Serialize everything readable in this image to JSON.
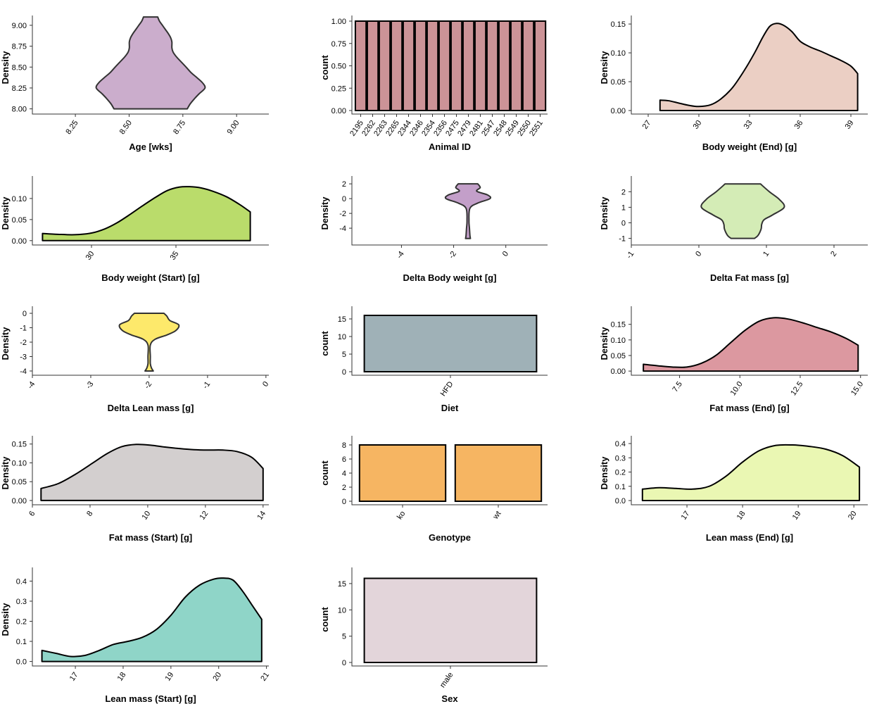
{
  "chart_data": [
    {
      "type": "violin",
      "xlabel": "Age [wks]",
      "ylabel": "Density",
      "color": "#cbadcc",
      "xlim": [
        8.05,
        9.15
      ],
      "ylim": [
        7.98,
        9.05
      ],
      "xticks": [
        8.25,
        8.5,
        8.75,
        9.0
      ],
      "xtick_labels": [
        "8.25",
        "8.50",
        "8.75",
        "9.00"
      ],
      "yticks": [
        8.0,
        8.25,
        8.5,
        8.75,
        9.0
      ],
      "ytick_labels": [
        "8.00",
        "8.25",
        "8.50",
        "8.75",
        "9.00"
      ],
      "center": 8.6,
      "profile": [
        [
          8.0,
          0.62
        ],
        [
          8.06,
          0.67
        ],
        [
          8.12,
          0.74
        ],
        [
          8.18,
          0.82
        ],
        [
          8.25,
          0.92
        ],
        [
          8.31,
          0.88
        ],
        [
          8.37,
          0.79
        ],
        [
          8.43,
          0.69
        ],
        [
          8.5,
          0.6
        ],
        [
          8.56,
          0.52
        ],
        [
          8.62,
          0.44
        ],
        [
          8.68,
          0.38
        ],
        [
          8.73,
          0.36
        ],
        [
          8.8,
          0.36
        ],
        [
          8.85,
          0.34
        ],
        [
          8.9,
          0.3
        ],
        [
          8.95,
          0.25
        ],
        [
          9.0,
          0.2
        ],
        [
          9.05,
          0.15
        ],
        [
          9.1,
          0.12
        ]
      ]
    },
    {
      "type": "bar",
      "xlabel": "Animal ID",
      "ylabel": "count",
      "color": "#cc9397",
      "categories": [
        "2195",
        "2262",
        "2263",
        "2265",
        "2344",
        "2346",
        "2354",
        "2356",
        "2475",
        "2479",
        "2481",
        "2547",
        "2548",
        "2549",
        "2550",
        "2551"
      ],
      "values": [
        1,
        1,
        1,
        1,
        1,
        1,
        1,
        1,
        1,
        1,
        1,
        1,
        1,
        1,
        1,
        1
      ],
      "ylim": [
        0,
        1
      ],
      "yticks": [
        0,
        0.25,
        0.5,
        0.75,
        1.0
      ],
      "ytick_labels": [
        "0.00",
        "0.25",
        "0.50",
        "0.75",
        "1.00"
      ]
    },
    {
      "type": "area",
      "xlabel": "Body weight (End) [g]",
      "ylabel": "Density",
      "color": "#ebcfc4",
      "xlim": [
        26,
        40
      ],
      "ylim": [
        0,
        0.155
      ],
      "xticks": [
        27,
        30,
        33,
        36,
        39
      ],
      "xtick_labels": [
        "27",
        "30",
        "33",
        "36",
        "39"
      ],
      "yticks": [
        0,
        0.05,
        0.1,
        0.15
      ],
      "ytick_labels": [
        "0.00",
        "0.05",
        "0.10",
        "0.15"
      ],
      "x": [
        27.7,
        28.2,
        28.8,
        29.4,
        30,
        30.7,
        31.3,
        32,
        32.7,
        33.3,
        33.8,
        34.2,
        34.6,
        35,
        35.5,
        36,
        36.6,
        37.2,
        37.8,
        38.4,
        39,
        39.4
      ],
      "y": [
        0.018,
        0.017,
        0.013,
        0.009,
        0.007,
        0.01,
        0.02,
        0.04,
        0.07,
        0.1,
        0.128,
        0.146,
        0.151,
        0.148,
        0.137,
        0.12,
        0.11,
        0.103,
        0.095,
        0.087,
        0.077,
        0.064
      ]
    },
    {
      "type": "area",
      "xlabel": "Body weight (Start) [g]",
      "ylabel": "Density",
      "color": "#badc6b",
      "xlim": [
        26.5,
        40.5
      ],
      "ylim": [
        -0.002,
        0.14
      ],
      "xticks": [
        30,
        35
      ],
      "xtick_labels": [
        "30",
        "35"
      ],
      "yticks": [
        0,
        0.05,
        0.1
      ],
      "ytick_labels": [
        "0.00",
        "0.05",
        "0.10"
      ],
      "x": [
        27.1,
        28,
        29,
        30,
        30.8,
        31.5,
        32.2,
        33,
        33.8,
        34.5,
        35.2,
        35.8,
        36.5,
        37.2,
        38,
        38.8,
        39.4
      ],
      "y": [
        0.017,
        0.015,
        0.014,
        0.018,
        0.028,
        0.042,
        0.06,
        0.082,
        0.103,
        0.119,
        0.127,
        0.128,
        0.125,
        0.117,
        0.104,
        0.085,
        0.068
      ]
    },
    {
      "type": "violin",
      "xlabel": "Delta Body weight [g]",
      "ylabel": "Density",
      "color": "#c39fc9",
      "xlim": [
        -5.9,
        1.6
      ],
      "ylim": [
        -5.8,
        2.3
      ],
      "xticks": [
        -4,
        -2,
        0
      ],
      "xtick_labels": [
        "-4",
        "-2",
        "0"
      ],
      "yticks": [
        -4,
        -2,
        0,
        2
      ],
      "ytick_labels": [
        "-4",
        "-2",
        "0",
        "2"
      ],
      "center": -1.45,
      "profile": [
        [
          -5.4,
          0.05
        ],
        [
          -5,
          0.04
        ],
        [
          -4,
          0.03
        ],
        [
          -3,
          0.02
        ],
        [
          -1.3,
          0.04
        ],
        [
          -0.6,
          0.2
        ],
        [
          0,
          0.45
        ],
        [
          0.5,
          0.4
        ],
        [
          1.0,
          0.18
        ],
        [
          1.5,
          0.25
        ],
        [
          2.0,
          0.2
        ]
      ]
    },
    {
      "type": "violin",
      "xlabel": "Delta Fat mass [g]",
      "ylabel": "Density",
      "color": "#d4ecb6",
      "xlim": [
        -1,
        2.5
      ],
      "ylim": [
        -1.2,
        2.65
      ],
      "xticks": [
        -1,
        0,
        1,
        2
      ],
      "xtick_labels": [
        "-1",
        "0",
        "1",
        "2"
      ],
      "yticks": [
        -1,
        0,
        1,
        2
      ],
      "ytick_labels": [
        "-1",
        "0",
        "1",
        "2"
      ],
      "center": 0.65,
      "profile": [
        [
          -1.0,
          0.2
        ],
        [
          -0.8,
          0.26
        ],
        [
          -0.4,
          0.31
        ],
        [
          -0.1,
          0.32
        ],
        [
          0.2,
          0.36
        ],
        [
          0.5,
          0.5
        ],
        [
          1.0,
          0.7
        ],
        [
          1.5,
          0.62
        ],
        [
          2.0,
          0.45
        ],
        [
          2.5,
          0.3
        ]
      ]
    },
    {
      "type": "violin",
      "xlabel": "Delta Lean mass [g]",
      "ylabel": "Density",
      "color": "#fde96b",
      "xlim": [
        -4,
        0.05
      ],
      "ylim": [
        -4.05,
        0.1
      ],
      "xticks": [
        -4,
        -3,
        -2,
        -1,
        0
      ],
      "xtick_labels": [
        "-4",
        "-3",
        "-2",
        "-1",
        "0"
      ],
      "yticks": [
        -4,
        -3,
        -2,
        -1,
        0
      ],
      "ytick_labels": [
        "-4",
        "-3",
        "-2",
        "-1",
        "0"
      ],
      "center": -2.0,
      "profile": [
        [
          -4.0,
          0.07
        ],
        [
          -3.8,
          0.04
        ],
        [
          -3.5,
          0.02
        ],
        [
          -3,
          0.02
        ],
        [
          -2.2,
          0.02
        ],
        [
          -1.8,
          0.1
        ],
        [
          -1.5,
          0.3
        ],
        [
          -1.2,
          0.45
        ],
        [
          -0.8,
          0.5
        ],
        [
          -0.5,
          0.35
        ],
        [
          -0.2,
          0.3
        ],
        [
          0,
          0.25
        ]
      ]
    },
    {
      "type": "bar",
      "xlabel": "Diet",
      "ylabel": "count",
      "color": "#9fb1b7",
      "categories": [
        "HFD"
      ],
      "values": [
        16
      ],
      "ylim": [
        0,
        17
      ],
      "yticks": [
        0,
        5,
        10,
        15
      ],
      "ytick_labels": [
        "0",
        "5",
        "10",
        "15"
      ]
    },
    {
      "type": "area",
      "xlabel": "Fat mass (End) [g]",
      "ylabel": "Density",
      "color": "#dc98a0",
      "xlim": [
        5.5,
        15.3
      ],
      "ylim": [
        -0.002,
        0.19
      ],
      "xticks": [
        7.5,
        10,
        12.5,
        15
      ],
      "xtick_labels": [
        "7.5",
        "10.0",
        "12.5",
        "15.0"
      ],
      "yticks": [
        0,
        0.05,
        0.1,
        0.15
      ],
      "ytick_labels": [
        "0.00",
        "0.05",
        "0.10",
        "0.15"
      ],
      "x": [
        6,
        6.6,
        7.2,
        7.8,
        8.4,
        9,
        9.6,
        10.2,
        10.8,
        11.4,
        12,
        12.6,
        13.2,
        13.8,
        14.4,
        14.9
      ],
      "y": [
        0.022,
        0.017,
        0.013,
        0.013,
        0.025,
        0.05,
        0.09,
        0.13,
        0.16,
        0.171,
        0.167,
        0.155,
        0.14,
        0.125,
        0.105,
        0.083
      ]
    },
    {
      "type": "area",
      "xlabel": "Fat mass (Start) [g]",
      "ylabel": "Density",
      "color": "#d3cfcf",
      "xlim": [
        6,
        14.2
      ],
      "ylim": [
        -0.002,
        0.157
      ],
      "xticks": [
        6,
        8,
        10,
        12,
        14
      ],
      "xtick_labels": [
        "6",
        "8",
        "10",
        "12",
        "14"
      ],
      "yticks": [
        0,
        0.05,
        0.1,
        0.15
      ],
      "ytick_labels": [
        "0.00",
        "0.05",
        "0.10",
        "0.15"
      ],
      "x": [
        6.3,
        6.9,
        7.5,
        8.1,
        8.6,
        9.1,
        9.6,
        10.1,
        10.6,
        11.1,
        11.6,
        12.1,
        12.6,
        13.1,
        13.6,
        14
      ],
      "y": [
        0.032,
        0.045,
        0.07,
        0.1,
        0.125,
        0.143,
        0.149,
        0.147,
        0.142,
        0.138,
        0.135,
        0.134,
        0.134,
        0.13,
        0.115,
        0.085
      ]
    },
    {
      "type": "bar",
      "xlabel": "Genotype",
      "ylabel": "count",
      "color": "#f6b562",
      "categories": [
        "ko",
        "wt"
      ],
      "values": [
        8,
        8
      ],
      "ylim": [
        0,
        8.5
      ],
      "yticks": [
        0,
        2,
        4,
        6,
        8
      ],
      "ytick_labels": [
        "0",
        "2",
        "4",
        "6",
        "8"
      ]
    },
    {
      "type": "area",
      "xlabel": "Lean mass (End) [g]",
      "ylabel": "Density",
      "color": "#eaf7b3",
      "xlim": [
        16,
        20.25
      ],
      "ylim": [
        -0.005,
        0.415
      ],
      "xticks": [
        17,
        18,
        19,
        20
      ],
      "xtick_labels": [
        "17",
        "18",
        "19",
        "20"
      ],
      "yticks": [
        0,
        0.1,
        0.2,
        0.3,
        0.4
      ],
      "ytick_labels": [
        "0.0",
        "0.1",
        "0.2",
        "0.3",
        "0.4"
      ],
      "x": [
        16.2,
        16.5,
        16.8,
        17.1,
        17.4,
        17.7,
        18,
        18.3,
        18.6,
        18.9,
        19.2,
        19.5,
        19.8,
        20.1
      ],
      "y": [
        0.08,
        0.09,
        0.085,
        0.08,
        0.1,
        0.17,
        0.27,
        0.35,
        0.387,
        0.39,
        0.38,
        0.36,
        0.315,
        0.235
      ]
    },
    {
      "type": "area",
      "xlabel": "Lean mass (Start) [g]",
      "ylabel": "Density",
      "color": "#8fd5c8",
      "xlim": [
        16.1,
        21.05
      ],
      "ylim": [
        -0.005,
        0.44
      ],
      "xticks": [
        17,
        18,
        19,
        20,
        21
      ],
      "xtick_labels": [
        "17",
        "18",
        "19",
        "20",
        "21"
      ],
      "yticks": [
        0,
        0.1,
        0.2,
        0.3,
        0.4
      ],
      "ytick_labels": [
        "0.0",
        "0.1",
        "0.2",
        "0.3",
        "0.4"
      ],
      "x": [
        16.3,
        16.6,
        16.9,
        17.2,
        17.5,
        17.8,
        18.1,
        18.4,
        18.7,
        19,
        19.3,
        19.6,
        19.9,
        20.1,
        20.3,
        20.5,
        20.7,
        20.9
      ],
      "y": [
        0.055,
        0.04,
        0.025,
        0.03,
        0.055,
        0.085,
        0.1,
        0.12,
        0.16,
        0.23,
        0.32,
        0.38,
        0.41,
        0.415,
        0.405,
        0.35,
        0.28,
        0.21
      ]
    },
    {
      "type": "bar",
      "xlabel": "Sex",
      "ylabel": "count",
      "color": "#e3d5da",
      "categories": [
        "male"
      ],
      "values": [
        16
      ],
      "ylim": [
        0,
        17
      ],
      "yticks": [
        0,
        5,
        10,
        15
      ],
      "ytick_labels": [
        "0",
        "5",
        "10",
        "15"
      ]
    }
  ]
}
